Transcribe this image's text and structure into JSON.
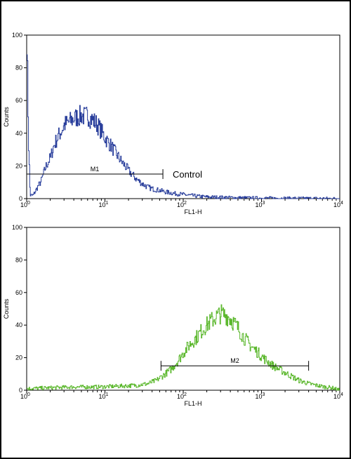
{
  "chart_data": [
    {
      "type": "line",
      "xscale": "log",
      "xlim": [
        1,
        10000
      ],
      "ylim": [
        0,
        100
      ],
      "xlabel": "FL1-H",
      "ylabel": "Counts",
      "yticks": [
        0,
        20,
        40,
        60,
        80,
        100
      ],
      "xtick_base": "10",
      "xtick_exponents": [
        "0",
        "1",
        "2",
        "3",
        "4"
      ],
      "color": "#2a3f9c",
      "series": [
        {
          "x": [
            1.0,
            1.05,
            1.1,
            1.2,
            1.3,
            1.4,
            1.5,
            1.6,
            1.7,
            1.8,
            2.0,
            2.2,
            2.5,
            2.8,
            3.0,
            3.5,
            4.0,
            4.5,
            5.0,
            5.5,
            6.0,
            6.5,
            7.0,
            8.0,
            9.0,
            10.0,
            12.0,
            14.0,
            16.0,
            18.0,
            20.0,
            25.0,
            30.0,
            35.0,
            40.0,
            50.0,
            60.0,
            70.0,
            80.0,
            100.0,
            120.0,
            150.0,
            200.0,
            300.0,
            500.0,
            1000.0,
            2000.0,
            5000.0,
            10000.0
          ],
          "y": [
            100,
            35,
            2,
            2,
            5,
            8,
            10,
            14,
            18,
            21,
            25,
            32,
            38,
            42,
            45,
            47,
            49,
            50,
            51,
            50,
            51,
            49,
            48,
            45,
            41,
            37,
            32,
            27,
            23,
            20,
            17,
            12,
            9,
            7,
            6,
            5,
            4,
            3.5,
            3,
            2.5,
            2,
            1.5,
            1,
            0.8,
            0.5,
            0.3,
            0.2,
            0.1,
            0
          ]
        }
      ],
      "gate": {
        "label": "M1",
        "x_start": 1,
        "x_end": 55,
        "y": 15
      },
      "annotation": "Control"
    },
    {
      "type": "line",
      "xscale": "log",
      "xlim": [
        1,
        10000
      ],
      "ylim": [
        0,
        100
      ],
      "xlabel": "FL1-H",
      "ylabel": "Counts",
      "yticks": [
        0,
        20,
        40,
        60,
        80,
        100
      ],
      "xtick_base": "10",
      "xtick_exponents": [
        "0",
        "1",
        "2",
        "3",
        "4"
      ],
      "color": "#5cb82e",
      "series": [
        {
          "x": [
            1.0,
            2.0,
            4.0,
            8.0,
            15.0,
            25.0,
            35.0,
            45.0,
            55.0,
            70.0,
            85.0,
            100.0,
            120.0,
            150.0,
            180.0,
            220.0,
            260.0,
            300.0,
            350.0,
            400.0,
            500.0,
            600.0,
            700.0,
            900.0,
            1100.0,
            1400.0,
            1800.0,
            2300.0,
            3000.0,
            4000.0,
            5000.0,
            6500.0,
            8000.0,
            10000.0
          ],
          "y": [
            1,
            1.5,
            2,
            2,
            2.5,
            3,
            4,
            6,
            9,
            13,
            18,
            23,
            28,
            33,
            38,
            42,
            45,
            47,
            46,
            44,
            38,
            32,
            28,
            23,
            19,
            15,
            12,
            9,
            6,
            4,
            3,
            2,
            1.5,
            0
          ]
        }
      ],
      "gate": {
        "label": "M2",
        "x_start": 52,
        "x_end": 4000,
        "y": 15
      }
    }
  ]
}
